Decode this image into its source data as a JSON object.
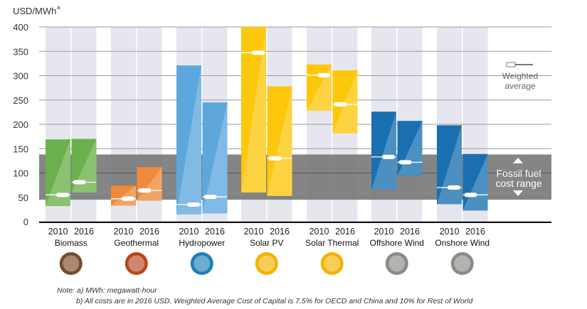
{
  "chart_data": {
    "type": "bar",
    "ylabel": "USD/MWh",
    "ylabel_superscript": "a",
    "ylim": [
      0,
      400
    ],
    "yticks": [
      0,
      50,
      100,
      150,
      200,
      250,
      300,
      350,
      400
    ],
    "grid": true,
    "colors_note": "floating range bars with weighted average markers",
    "categories": [
      {
        "name": "Biomass",
        "color": "#6ab04c",
        "icon": "biomass-drop-icon",
        "icon_color": "#7a4a2a",
        "bars": [
          {
            "year": "2010",
            "low": 32,
            "high": 169,
            "avg": 55
          },
          {
            "year": "2016",
            "low": 60,
            "high": 170,
            "avg": 81
          }
        ]
      },
      {
        "name": "Geothermal",
        "color": "#f08a3a",
        "icon": "volcano-icon",
        "icon_color": "#b8461f",
        "bars": [
          {
            "year": "2010",
            "low": 33,
            "high": 74,
            "avg": 47
          },
          {
            "year": "2016",
            "low": 43,
            "high": 112,
            "avg": 64
          }
        ]
      },
      {
        "name": "Hydropower",
        "color": "#5ea7dc",
        "icon": "water-drop-icon",
        "icon_color": "#1d7fb5",
        "bars": [
          {
            "year": "2010",
            "low": 15,
            "high": 321,
            "avg": 35
          },
          {
            "year": "2016",
            "low": 17,
            "high": 245,
            "avg": 51
          }
        ]
      },
      {
        "name": "Solar PV",
        "color": "#fdc70c",
        "icon": "sun-icon",
        "icon_color": "#f1b400",
        "bars": [
          {
            "year": "2010",
            "low": 60,
            "high": 400,
            "avg": 347
          },
          {
            "year": "2016",
            "low": 53,
            "high": 278,
            "avg": 130
          }
        ]
      },
      {
        "name": "Solar Thermal",
        "color": "#fdc70c",
        "icon": "sun-icon",
        "icon_color": "#f1b400",
        "bars": [
          {
            "year": "2010",
            "low": 228,
            "high": 323,
            "avg": 301
          },
          {
            "year": "2016",
            "low": 181,
            "high": 311,
            "avg": 241
          }
        ]
      },
      {
        "name": "Offshore Wind",
        "color": "#1a6fb0",
        "icon": "wind-icon",
        "icon_color": "#8a8a86",
        "bars": [
          {
            "year": "2010",
            "low": 66,
            "high": 226,
            "avg": 133
          },
          {
            "year": "2016",
            "low": 94,
            "high": 207,
            "avg": 122
          }
        ]
      },
      {
        "name": "Onshore Wind",
        "color": "#1a6fb0",
        "icon": "wind-icon",
        "icon_color": "#8a8a86",
        "bars": [
          {
            "year": "2010",
            "low": 36,
            "high": 198,
            "avg": 70
          },
          {
            "year": "2016",
            "low": 23,
            "high": 139,
            "avg": 55
          }
        ]
      }
    ],
    "fossil_range": {
      "low": 45,
      "high": 138,
      "label_line1": "Fossil fuel",
      "label_line2": "cost range",
      "color": "#7b7b7b"
    },
    "legend": {
      "line1": "Weighted",
      "line2": "average",
      "placement": "right"
    }
  },
  "notes": {
    "a": "Note: a) MWh: megawatt-hour",
    "b": "b) All costs are in 2016 USD. Weighted Average Cost of Capital is 7.5% for OECD and China and 10% for Rest of World"
  }
}
